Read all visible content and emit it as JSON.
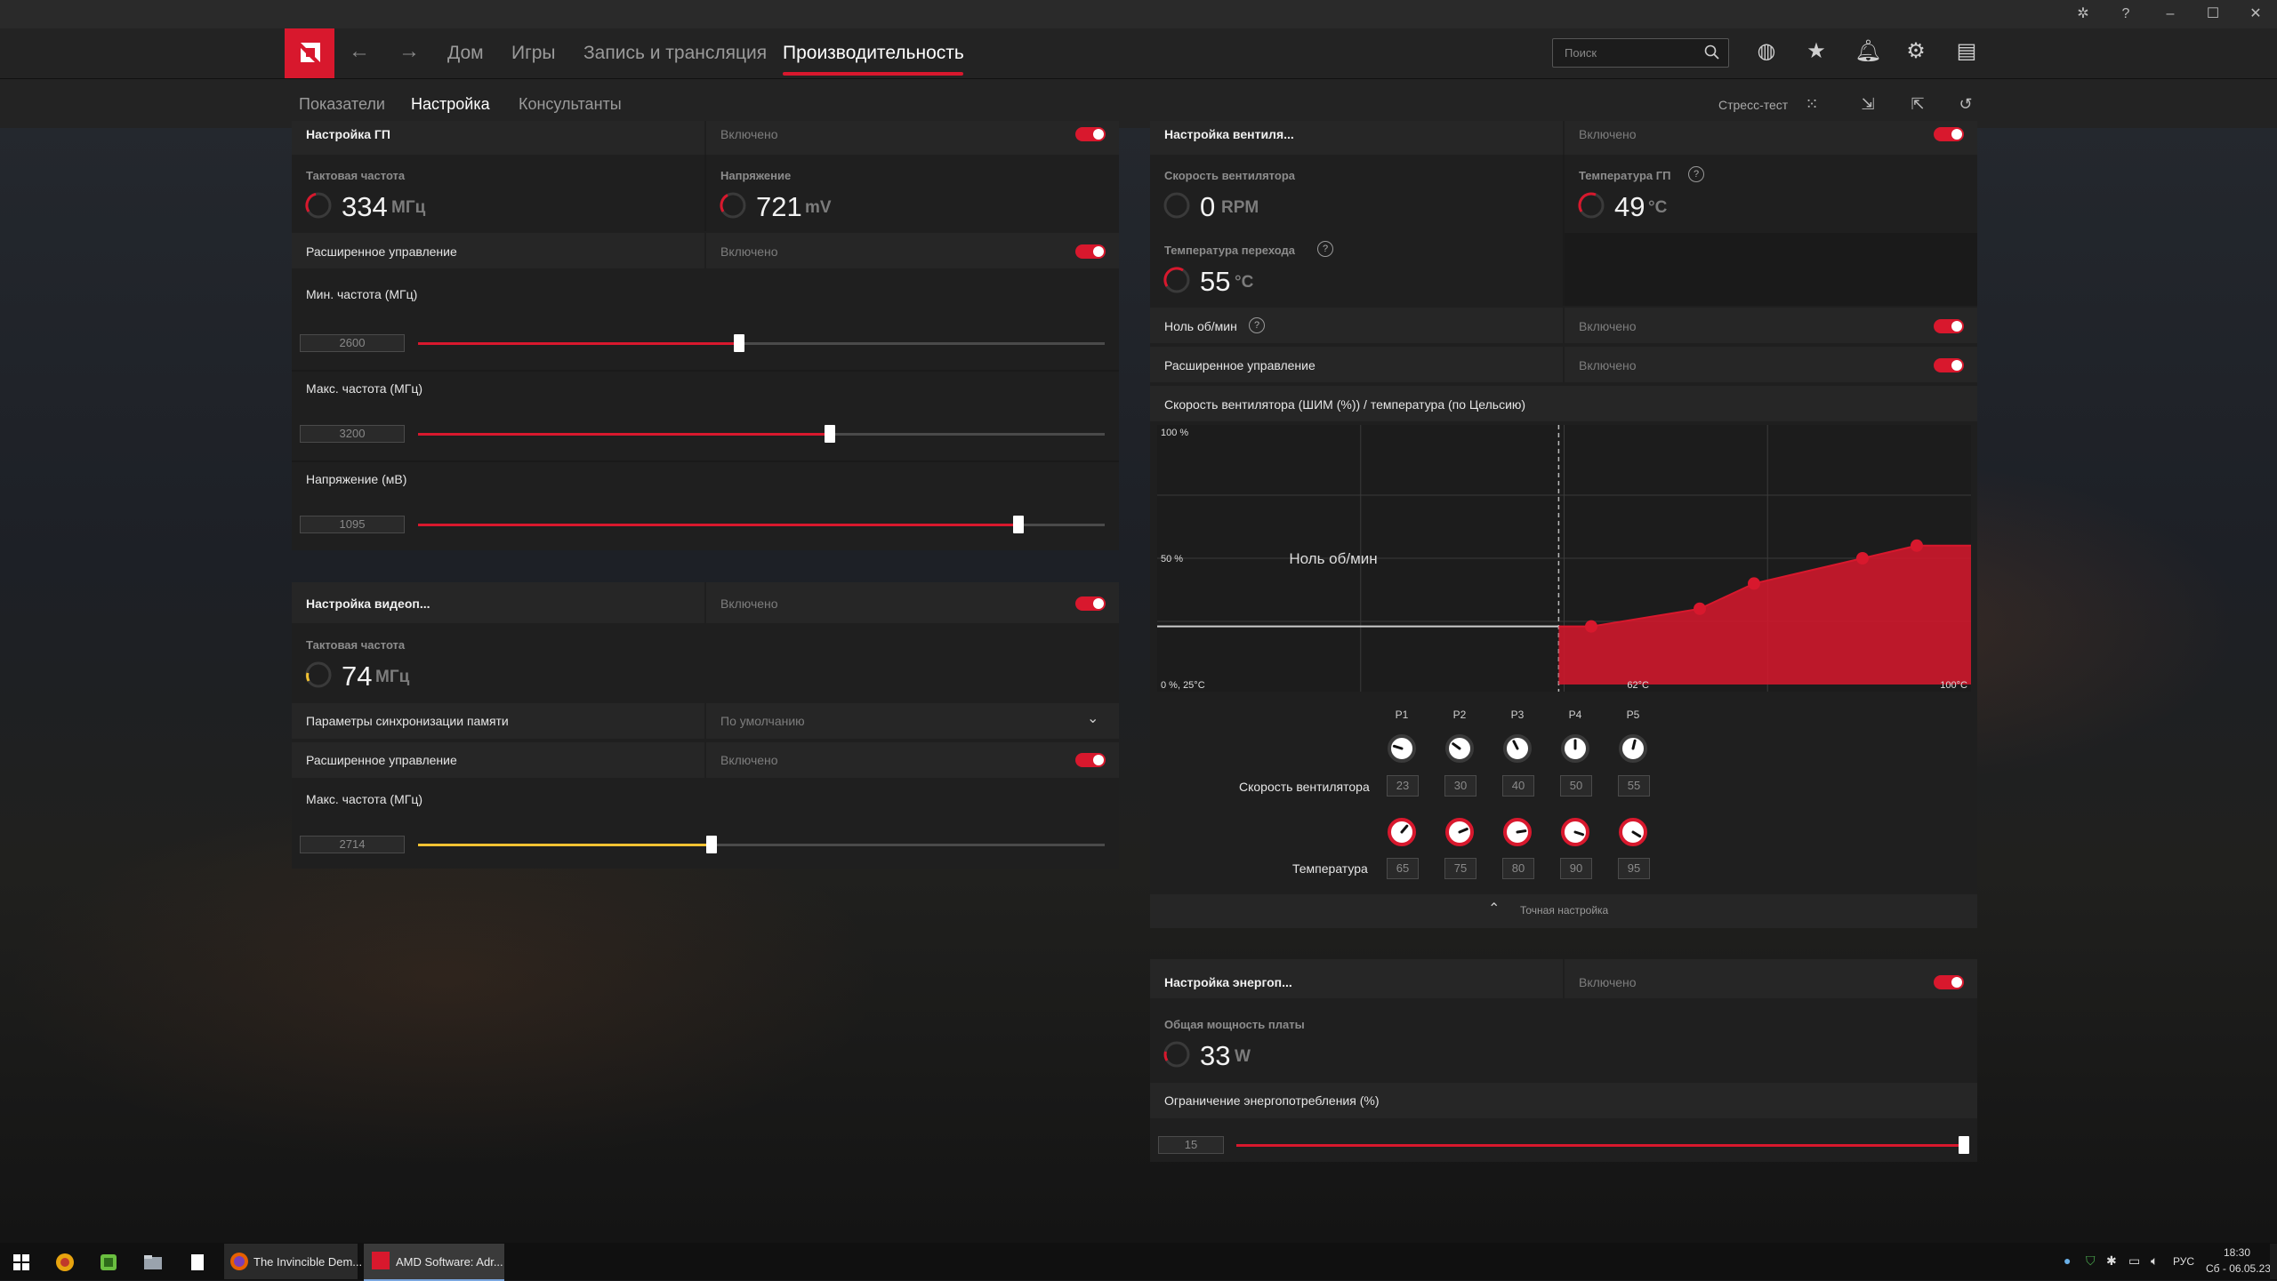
{
  "window": {
    "controls": [
      "bug-icon",
      "help-icon",
      "minimize",
      "maximize",
      "close"
    ]
  },
  "nav": {
    "items": [
      "Дом",
      "Игры",
      "Запись и трансляция",
      "Производительность"
    ],
    "active": "Производительность",
    "search_placeholder": "Поиск"
  },
  "subnav": {
    "items": [
      "Показатели",
      "Настройка",
      "Консультанты"
    ],
    "active": "Настройка",
    "stress_test": "Стресс-тест"
  },
  "gpu_tuning": {
    "title": "Настройка ГП",
    "state": "Включено",
    "clock_label": "Тактовая частота",
    "clock_value": "334",
    "clock_unit": "МГц",
    "voltage_label": "Напряжение",
    "voltage_value": "721",
    "voltage_unit": "mV",
    "advanced_label": "Расширенное управление",
    "advanced_state": "Включено",
    "min_freq_label": "Мин. частота (МГц)",
    "min_freq_value": "2600",
    "min_freq_fraction": 0.468,
    "max_freq_label": "Макс. частота (МГц)",
    "max_freq_value": "3200",
    "max_freq_fraction": 0.6,
    "volt_label": "Напряжение (мВ)",
    "volt_value": "1095",
    "volt_fraction": 0.874
  },
  "vram_tuning": {
    "title": "Настройка видеоп...",
    "state": "Включено",
    "clock_label": "Тактовая частота",
    "clock_value": "74",
    "clock_unit": "МГц",
    "timing_label": "Параметры синхронизации памяти",
    "timing_value": "По умолчанию",
    "advanced_label": "Расширенное управление",
    "advanced_state": "Включено",
    "max_freq_label": "Макс. частота (МГц)",
    "max_freq_value": "2714",
    "max_freq_fraction": 0.428
  },
  "fan_tuning": {
    "title": "Настройка вентиля...",
    "state": "Включено",
    "fan_speed_label": "Скорость вентилятора",
    "fan_speed_value": "0",
    "fan_speed_unit": "RPM",
    "gpu_temp_label": "Температура ГП",
    "gpu_temp_value": "49",
    "gpu_temp_unit": "°C",
    "junction_label": "Температура перехода",
    "junction_value": "55",
    "junction_unit": "°C",
    "zero_rpm_label": "Ноль об/мин",
    "zero_rpm_state": "Включено",
    "advanced_label": "Расширенное управление",
    "advanced_state": "Включено",
    "curve_title": "Скорость вентилятора (ШИМ (%)) / температура (по Цельсию)",
    "fine_tune_label": "Точная настройка",
    "speed_row_label": "Скорость вентилятора",
    "temp_row_label": "Температура"
  },
  "chart_data": {
    "type": "area",
    "title": "Скорость вентилятора (ШИМ (%)) / температура (по Цельсию)",
    "y_ticks": [
      "100 %",
      "50 %",
      "0 %, 25°C"
    ],
    "x_ticks": [
      "62°C",
      "100°C"
    ],
    "zero_rpm_region_label": "Ноль об/мин",
    "x": [
      65,
      75,
      80,
      90,
      95
    ],
    "series": [
      {
        "values": [
          23,
          30,
          40,
          50,
          55
        ]
      }
    ],
    "points": [
      "P1",
      "P2",
      "P3",
      "P4",
      "P5"
    ],
    "xlim": [
      25,
      100
    ],
    "ylim": [
      0,
      100
    ],
    "grid": true,
    "accent": "#d8182d"
  },
  "power_tuning": {
    "title": "Настройка энергоп...",
    "state": "Включено",
    "board_power_label": "Общая мощность платы",
    "board_power_value": "33",
    "board_power_unit": "W",
    "limit_label": "Ограничение энергопотребления (%)",
    "limit_value": "15",
    "limit_fraction": 1.0
  },
  "taskbar": {
    "tasks": [
      "The Invincible Dem...",
      "AMD Software: Adr..."
    ],
    "lang": "РУС",
    "time": "18:30",
    "date": "Сб - 06.05.23"
  },
  "colors": {
    "accent": "#d8182d",
    "vram_slider": "#f2c232"
  }
}
